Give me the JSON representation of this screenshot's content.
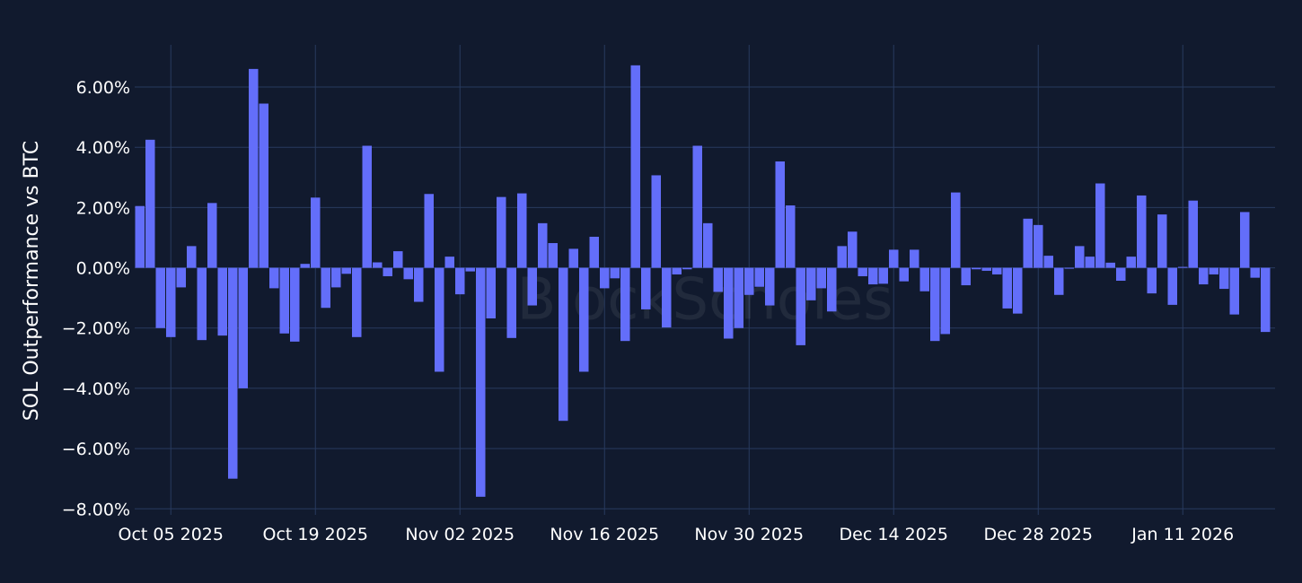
{
  "chart_data": {
    "type": "bar",
    "ylabel": "SOL Outperformance vs BTC",
    "watermark": "BlockScholes",
    "ylim": [
      -8.2,
      7.4
    ],
    "yticks": [
      6,
      4,
      2,
      0,
      -2,
      -4,
      -6,
      -8
    ],
    "ytick_labels": [
      "6.00%",
      "4.00%",
      "2.00%",
      "0.00%",
      "−2.00%",
      "−4.00%",
      "−6.00%",
      "−8.00%"
    ],
    "x_start": "2025-10-02",
    "xticks": [
      "2025-10-05",
      "2025-10-19",
      "2025-11-02",
      "2025-11-16",
      "2025-11-30",
      "2025-12-14",
      "2025-12-28",
      "2026-01-11"
    ],
    "xtick_labels": [
      "Oct 05 2025",
      "Oct 19 2025",
      "Nov 02 2025",
      "Nov 16 2025",
      "Nov 30 2025",
      "Dec 14 2025",
      "Dec 28 2025",
      "Jan 11 2026"
    ],
    "grid": true,
    "bar_color": "#636efa",
    "series": [
      {
        "values": [
          2.05,
          4.25,
          -2.0,
          -2.3,
          -0.65,
          0.72,
          -2.4,
          2.15,
          -2.25,
          -7.0,
          -4.0,
          6.6,
          5.45,
          -0.68,
          -2.18,
          -2.45,
          0.13,
          2.33,
          -1.33,
          -0.65,
          -0.2,
          -2.3,
          4.05,
          0.18,
          -0.28,
          0.55,
          -0.38,
          -1.13,
          2.45,
          -3.45,
          0.37,
          -0.88,
          -0.12,
          -7.6,
          -1.68,
          2.35,
          -2.33,
          2.47,
          -1.25,
          1.48,
          0.82,
          -5.08,
          0.63,
          -3.45,
          1.03,
          -0.68,
          -0.35,
          -2.43,
          6.72,
          -1.38,
          3.07,
          -1.98,
          -0.22,
          -0.05,
          4.05,
          1.48,
          -0.8,
          -2.35,
          -2.0,
          -0.9,
          -0.63,
          -1.25,
          3.53,
          2.07,
          -2.57,
          -1.08,
          -0.68,
          -1.45,
          0.72,
          1.2,
          -0.28,
          -0.55,
          -0.53,
          0.6,
          -0.45,
          0.6,
          -0.78,
          -2.43,
          -2.2,
          2.5,
          -0.58,
          -0.05,
          -0.1,
          -0.22,
          -1.35,
          -1.52,
          1.63,
          1.42,
          0.4,
          -0.9,
          -0.03,
          0.72,
          0.37,
          2.8,
          0.17,
          -0.43,
          0.37,
          2.4,
          -0.85,
          1.77,
          -1.23,
          0.03,
          2.23,
          -0.55,
          -0.22,
          -0.7,
          -1.55,
          1.85,
          -0.33,
          -2.13
        ]
      }
    ]
  }
}
